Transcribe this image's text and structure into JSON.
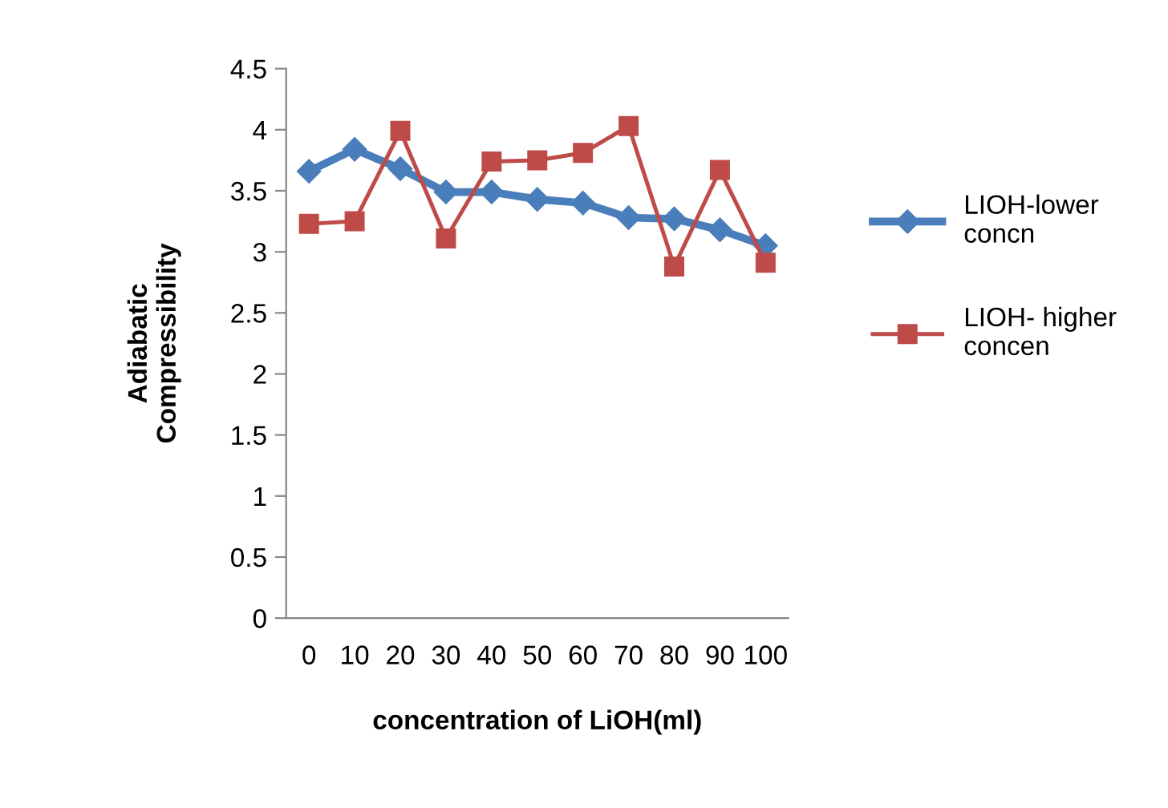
{
  "chart_data": {
    "type": "line",
    "xlabel": "concentration of LiOH(ml)",
    "ylabel": "Adiabatic\nCompressibility",
    "categories": [
      "0",
      "10",
      "20",
      "30",
      "40",
      "50",
      "60",
      "70",
      "80",
      "90",
      "100"
    ],
    "ylim": [
      0,
      4.5
    ],
    "yticks": [
      0,
      0.5,
      1,
      1.5,
      2,
      2.5,
      3,
      3.5,
      4,
      4.5
    ],
    "grid": false,
    "legend": "right",
    "series": [
      {
        "name": "LIOH-lower\nconcn",
        "color": "#4a7ebb",
        "marker": "diamond",
        "values": [
          3.66,
          3.84,
          3.68,
          3.49,
          3.49,
          3.43,
          3.4,
          3.28,
          3.27,
          3.18,
          3.05
        ]
      },
      {
        "name": "LIOH- higher\nconcen",
        "color": "#be4b48",
        "marker": "square",
        "values": [
          3.23,
          3.25,
          3.99,
          3.11,
          3.74,
          3.75,
          3.81,
          4.03,
          2.88,
          3.67,
          2.91
        ]
      }
    ]
  }
}
